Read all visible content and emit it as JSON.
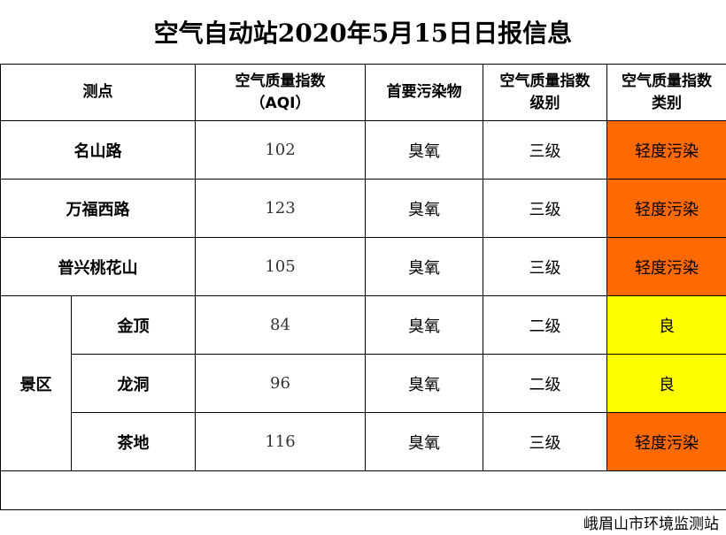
{
  "title": "空气自动站2020年5月15日日报信息",
  "headers": {
    "site": "测点",
    "aqi_line1": "空气质量指数",
    "aqi_line2": "（AQI）",
    "pollutant": "首要污染物",
    "level_line1": "空气质量指数",
    "level_line2": "级别",
    "category_line1": "空气质量指数",
    "category_line2": "类别"
  },
  "group_label": "景区",
  "rows": [
    {
      "site": "名山路",
      "aqi": "102",
      "pollutant": "臭氧",
      "level": "三级",
      "category": "轻度污染",
      "color": "#ff6a00"
    },
    {
      "site": "万福西路",
      "aqi": "123",
      "pollutant": "臭氧",
      "level": "三级",
      "category": "轻度污染",
      "color": "#ff6a00"
    },
    {
      "site": "普兴桃花山",
      "aqi": "105",
      "pollutant": "臭氧",
      "level": "三级",
      "category": "轻度污染",
      "color": "#ff6a00"
    },
    {
      "site": "金顶",
      "aqi": "84",
      "pollutant": "臭氧",
      "level": "二级",
      "category": "良",
      "color": "#ffff00"
    },
    {
      "site": "龙洞",
      "aqi": "96",
      "pollutant": "臭氧",
      "level": "二级",
      "category": "良",
      "color": "#ffff00"
    },
    {
      "site": "茶地",
      "aqi": "116",
      "pollutant": "臭氧",
      "level": "三级",
      "category": "轻度污染",
      "color": "#ff6a00"
    }
  ],
  "footer": "峨眉山市环境监测站"
}
